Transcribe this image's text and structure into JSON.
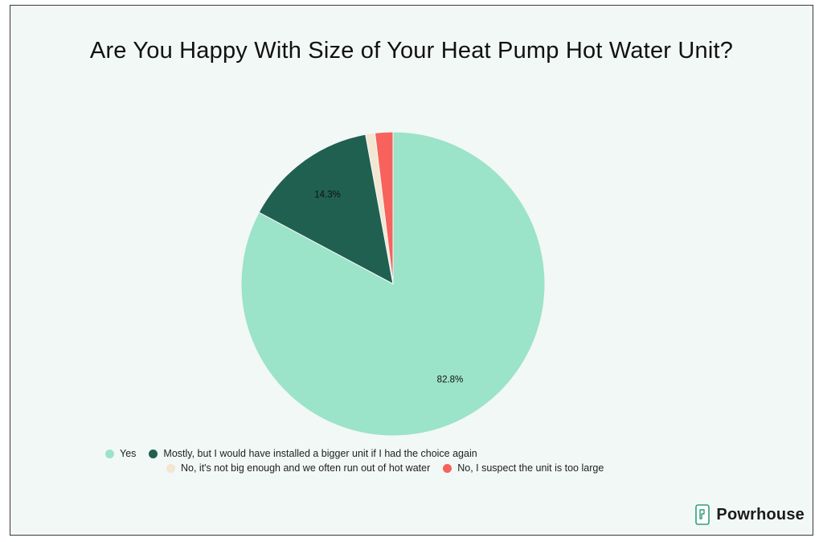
{
  "chart_data": {
    "type": "pie",
    "title": "Are You Happy With Size of Your Heat Pump Hot Water Unit?",
    "categories": [
      "Yes",
      "Mostly, but I would have installed a bigger unit if I had the choice again",
      "No, it's not big enough and we often run out of hot water",
      "No, I suspect the unit is too large"
    ],
    "values": [
      82.8,
      14.3,
      1.0,
      1.9
    ],
    "data_labels": [
      "82.8%",
      "14.3%",
      "",
      ""
    ],
    "colors": [
      "#9be3c9",
      "#206051",
      "#f3e6d2",
      "#f7625c"
    ],
    "legend_position": "bottom"
  },
  "brand": {
    "name": "Powrhouse",
    "icon": "powrhouse-logo-icon"
  }
}
